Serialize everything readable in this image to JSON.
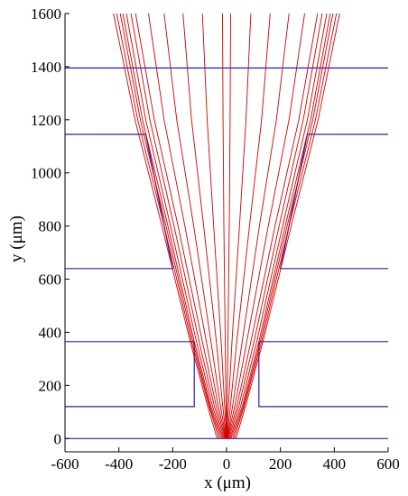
{
  "chart_data": {
    "type": "line",
    "xlabel": "x (μm)",
    "ylabel": "y (μm)",
    "xlim": [
      -600,
      600
    ],
    "ylim": [
      -50,
      1600
    ],
    "xticks": [
      -600,
      -400,
      -200,
      0,
      200,
      400,
      600
    ],
    "yticks": [
      0,
      200,
      400,
      600,
      800,
      1000,
      1200,
      1400,
      1600
    ],
    "grid": false,
    "colors": {
      "rays": "#d00000",
      "boundaries": "#2020c8",
      "axes": "#000000"
    },
    "boundaries": [
      {
        "x": [
          -600,
          600
        ],
        "y": [
          0,
          0
        ]
      },
      {
        "x": [
          -600,
          -120,
          -120,
          -600
        ],
        "y": [
          120,
          120,
          365,
          365
        ]
      },
      {
        "x": [
          600,
          120,
          120,
          600
        ],
        "y": [
          120,
          120,
          365,
          365
        ]
      },
      {
        "x": [
          -600,
          -200,
          -300,
          -600
        ],
        "y": [
          640,
          640,
          1145,
          1145
        ]
      },
      {
        "x": [
          600,
          200,
          300,
          600
        ],
        "y": [
          640,
          640,
          1145,
          1145
        ]
      },
      {
        "x": [
          -600,
          600
        ],
        "y": [
          1395,
          1395
        ]
      }
    ],
    "rays": [
      {
        "x": [
          -35,
          -70,
          -135,
          -240,
          -340,
          -420
        ],
        "y": [
          0,
          120,
          365,
          800,
          1200,
          1600
        ]
      },
      {
        "x": [
          -28,
          -65,
          -130,
          -232,
          -330,
          -408
        ],
        "y": [
          0,
          120,
          365,
          800,
          1200,
          1600
        ]
      },
      {
        "x": [
          -22,
          -62,
          -125,
          -225,
          -320,
          -395
        ],
        "y": [
          0,
          120,
          365,
          800,
          1200,
          1600
        ]
      },
      {
        "x": [
          -16,
          -58,
          -120,
          -218,
          -312,
          -385
        ],
        "y": [
          0,
          120,
          365,
          800,
          1200,
          1600
        ]
      },
      {
        "x": [
          -12,
          -52,
          -112,
          -208,
          -300,
          -372
        ],
        "y": [
          0,
          120,
          365,
          800,
          1200,
          1600
        ]
      },
      {
        "x": [
          -8,
          -45,
          -102,
          -195,
          -285,
          -355
        ],
        "y": [
          0,
          120,
          365,
          800,
          1200,
          1600
        ]
      },
      {
        "x": [
          -5,
          -38,
          -90,
          -180,
          -268,
          -338
        ],
        "y": [
          0,
          120,
          365,
          800,
          1200,
          1600
        ]
      },
      {
        "x": [
          -3,
          -30,
          -75,
          -155,
          -232,
          -290
        ],
        "y": [
          0,
          120,
          365,
          800,
          1200,
          1600
        ]
      },
      {
        "x": [
          -2,
          -22,
          -58,
          -122,
          -185,
          -232
        ],
        "y": [
          0,
          120,
          365,
          800,
          1200,
          1600
        ]
      },
      {
        "x": [
          -1,
          -14,
          -38,
          -85,
          -130,
          -162
        ],
        "y": [
          0,
          120,
          365,
          800,
          1200,
          1600
        ]
      },
      {
        "x": [
          0,
          -7,
          -20,
          -48,
          -72,
          -90
        ],
        "y": [
          0,
          120,
          365,
          800,
          1200,
          1600
        ]
      },
      {
        "x": [
          0,
          -2,
          -5,
          -10,
          -13,
          -15
        ],
        "y": [
          0,
          120,
          365,
          800,
          1200,
          1600
        ]
      },
      {
        "x": [
          0,
          2,
          5,
          10,
          13,
          15
        ],
        "y": [
          0,
          120,
          365,
          800,
          1200,
          1600
        ]
      },
      {
        "x": [
          0,
          7,
          20,
          48,
          72,
          90
        ],
        "y": [
          0,
          120,
          365,
          800,
          1200,
          1600
        ]
      },
      {
        "x": [
          1,
          14,
          38,
          85,
          130,
          162
        ],
        "y": [
          0,
          120,
          365,
          800,
          1200,
          1600
        ]
      },
      {
        "x": [
          2,
          22,
          58,
          122,
          185,
          232
        ],
        "y": [
          0,
          120,
          365,
          800,
          1200,
          1600
        ]
      },
      {
        "x": [
          3,
          30,
          75,
          155,
          232,
          290
        ],
        "y": [
          0,
          120,
          365,
          800,
          1200,
          1600
        ]
      },
      {
        "x": [
          5,
          38,
          90,
          180,
          268,
          338
        ],
        "y": [
          0,
          120,
          365,
          800,
          1200,
          1600
        ]
      },
      {
        "x": [
          8,
          45,
          102,
          195,
          285,
          355
        ],
        "y": [
          0,
          120,
          365,
          800,
          1200,
          1600
        ]
      },
      {
        "x": [
          12,
          52,
          112,
          208,
          300,
          372
        ],
        "y": [
          0,
          120,
          365,
          800,
          1200,
          1600
        ]
      },
      {
        "x": [
          16,
          58,
          120,
          218,
          312,
          385
        ],
        "y": [
          0,
          120,
          365,
          800,
          1200,
          1600
        ]
      },
      {
        "x": [
          22,
          62,
          125,
          225,
          320,
          395
        ],
        "y": [
          0,
          120,
          365,
          800,
          1200,
          1600
        ]
      },
      {
        "x": [
          28,
          65,
          130,
          232,
          330,
          408
        ],
        "y": [
          0,
          120,
          365,
          800,
          1200,
          1600
        ]
      },
      {
        "x": [
          35,
          70,
          135,
          240,
          340,
          420
        ],
        "y": [
          0,
          120,
          365,
          800,
          1200,
          1600
        ]
      }
    ]
  }
}
